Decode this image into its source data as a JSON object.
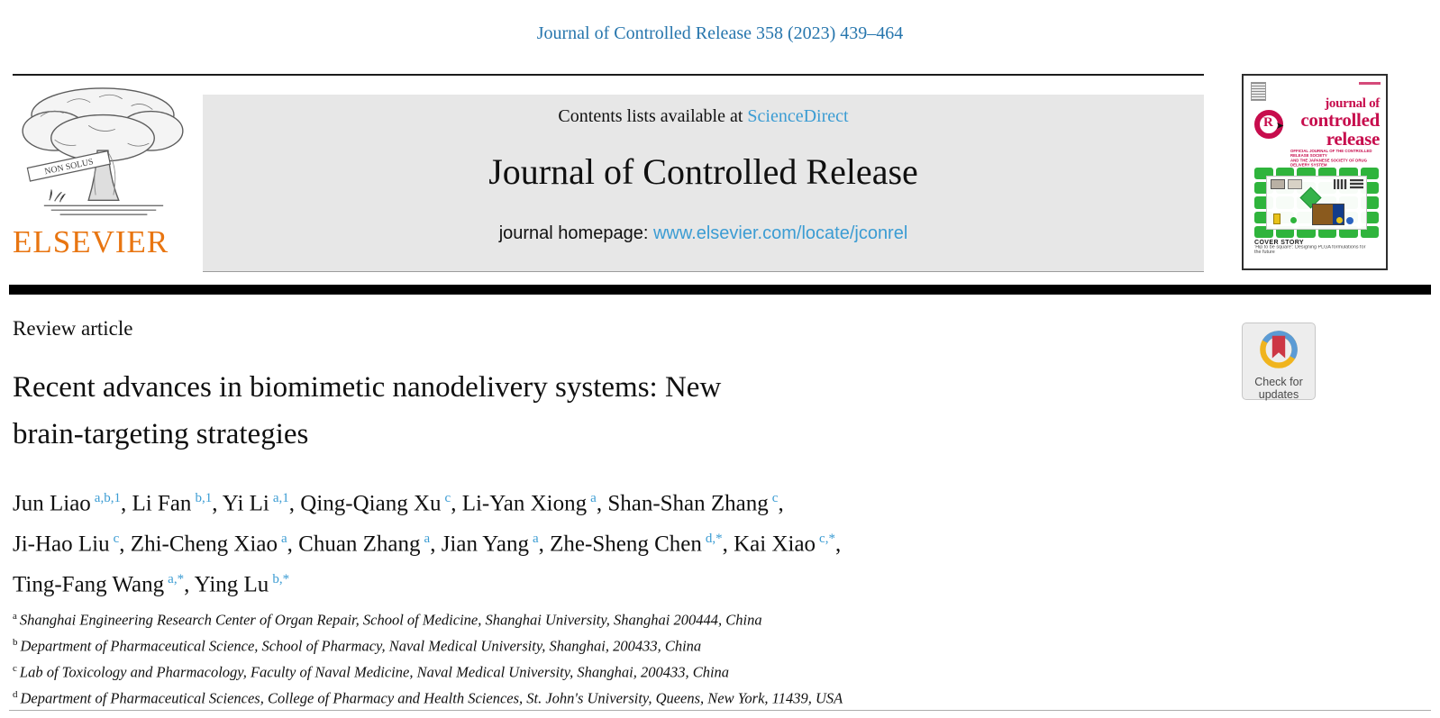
{
  "page": {
    "citation": "Journal of Controlled Release 358 (2023) 439–464"
  },
  "header": {
    "contents_prefix": "Contents lists available at",
    "sciencedirect_label": "ScienceDirect",
    "journal_title": "Journal of Controlled Release",
    "homepage_prefix": "journal homepage:",
    "homepage_url": "www.elsevier.com/locate/jconrel",
    "elsevier_wordmark": "ELSEVIER",
    "non_solus": "NON SOLUS"
  },
  "cover": {
    "title_lines": [
      "journal of",
      "controlled",
      "release"
    ],
    "logo_letter": "R",
    "logo_arrow": "➤",
    "official_line1": "OFFICIAL JOURNAL OF THE CONTROLLED RELEASE SOCIETY",
    "official_line2": "AND THE JAPANESE SOCIETY OF DRUG DELIVERY SYSTEM",
    "cover_story_label": "COVER STORY",
    "cover_story_text": "‘Hip to be square’: Designing PLGA formulations for the future"
  },
  "article": {
    "type_label": "Review article",
    "title_line1": "Recent advances in biomimetic nanodelivery systems: New",
    "title_line2": "brain-targeting strategies",
    "authors": [
      {
        "name": "Jun Liao",
        "sup": "a,b,1"
      },
      {
        "name": "Li Fan",
        "sup": "b,1"
      },
      {
        "name": "Yi Li",
        "sup": "a,1"
      },
      {
        "name": "Qing-Qiang Xu",
        "sup": "c"
      },
      {
        "name": "Li-Yan Xiong",
        "sup": "a"
      },
      {
        "name": "Shan-Shan Zhang",
        "sup": "c",
        "break_after": true
      },
      {
        "name": "Ji-Hao Liu",
        "sup": "c"
      },
      {
        "name": "Zhi-Cheng Xiao",
        "sup": "a"
      },
      {
        "name": "Chuan Zhang",
        "sup": "a"
      },
      {
        "name": "Jian Yang",
        "sup": "a"
      },
      {
        "name": "Zhe-Sheng Chen",
        "sup": "d,*"
      },
      {
        "name": "Kai Xiao",
        "sup": "c,*",
        "break_after": true
      },
      {
        "name": "Ting-Fang Wang",
        "sup": "a,*"
      },
      {
        "name": "Ying Lu",
        "sup": "b,*"
      }
    ],
    "affiliations": [
      {
        "sup": "a",
        "text": "Shanghai Engineering Research Center of Organ Repair, School of Medicine, Shanghai University, Shanghai 200444, China"
      },
      {
        "sup": "b",
        "text": "Department of Pharmaceutical Science, School of Pharmacy, Naval Medical University, Shanghai, 200433, China"
      },
      {
        "sup": "c",
        "text": "Lab of Toxicology and Pharmacology, Faculty of Naval Medicine, Naval Medical University, Shanghai, 200433, China"
      },
      {
        "sup": "d",
        "text": "Department of Pharmaceutical Sciences, College of Pharmacy and Health Sciences, St. John's University, Queens, New York, 11439, USA"
      }
    ]
  },
  "badge": {
    "line1": "Check for",
    "line2": "updates"
  },
  "colors": {
    "citation_blue": "#2776ad",
    "link_blue": "#3b9cd3",
    "elsevier_orange": "#e87511",
    "cover_crimson": "#c70d4d",
    "cover_green": "#2fb43c",
    "badge_yellow": "#f0b41e",
    "badge_blue": "#5b9bd5",
    "badge_red": "#cd3745"
  }
}
